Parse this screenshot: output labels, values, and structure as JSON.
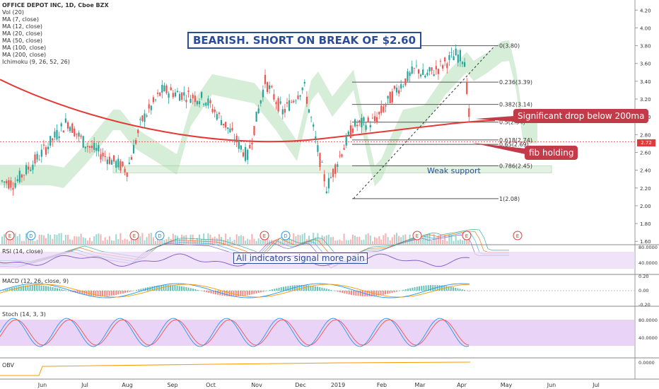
{
  "header": {
    "symbol_line": "OFFICE DEPOT INC, 1D, Cboe BZX",
    "indicators": [
      "Vol (20)",
      "MA (7, close)",
      "MA (12, close)",
      "MA (20, close)",
      "MA (50, close)",
      "MA (100, close)",
      "MA (200, close)",
      "Ichimoku (9, 26, 52, 26)"
    ]
  },
  "annotations": {
    "headline": "BEARISH. SHORT ON BREAK OF $2.60",
    "drop_callout": "Significant drop below 200ma",
    "fib_callout": "fib holding",
    "support_label": "Weak support",
    "indicators_label": "All indicators signal more pain"
  },
  "colors": {
    "up": "#26a69a",
    "down": "#ef5350",
    "ma200": "#e53935",
    "ma100": "#c0392b",
    "cloud_green": "#a5d6a7",
    "cloud_red": "#f8bbd0",
    "rsi_band": "#e9d5f7",
    "stoch_band": "#e2c6f5",
    "callout": "#c23b48",
    "annotation_blue": "#2a4d9a"
  },
  "panes": {
    "rsi_label": "RSI (14, close)",
    "macd_label": "MACD (12, 26, close, 9)",
    "stoch_label": "Stoch (14, 3, 3)",
    "obv_label": "OBV",
    "last_price_tag": "2.72"
  },
  "chart_data": {
    "type": "candlestick",
    "x_ticks": [
      "Jun",
      "Jul",
      "Aug",
      "Sep",
      "Oct",
      "Nov",
      "Dec",
      "2019",
      "Feb",
      "Mar",
      "Apr",
      "May",
      "Jun",
      "Jul"
    ],
    "price_axis": {
      "ticks": [
        "4.20",
        "4.00",
        "3.80",
        "3.60",
        "3.40",
        "3.20",
        "3.00",
        "2.80",
        "2.60",
        "2.40",
        "2.20",
        "2.00",
        "1.80",
        "1.60"
      ],
      "range": [
        1.57,
        4.25
      ]
    },
    "fib_levels": [
      {
        "ratio": 0,
        "price": 3.8,
        "label": "0(3.80)"
      },
      {
        "ratio": 0.236,
        "price": 3.39,
        "label": "0.236(3.39)"
      },
      {
        "ratio": 0.382,
        "price": 3.14,
        "label": "0.382(3.14)"
      },
      {
        "ratio": 0.5,
        "price": 2.94,
        "label": "0.5(2.94)"
      },
      {
        "ratio": 0.618,
        "price": 2.74,
        "label": "0.618(2.74)"
      },
      {
        "ratio": 0.65,
        "price": 2.69,
        "label": "0.65(2.69)"
      },
      {
        "ratio": 0.786,
        "price": 2.45,
        "label": "0.786(2.45)"
      },
      {
        "ratio": 1,
        "price": 2.08,
        "label": "1(2.08)"
      }
    ],
    "support_zone": [
      2.37,
      2.45
    ],
    "last_price": 2.72,
    "rsi_axis": [
      "80.0000",
      "40.0000"
    ],
    "macd_axis": [
      "0.20",
      "0.00",
      "-0.20"
    ],
    "stoch_axis": [
      "80.0000",
      "40.0000"
    ],
    "obv_axis": [
      "0.0000"
    ],
    "event_markers": [
      "E",
      "D",
      "E",
      "D",
      "E",
      "D",
      "E",
      "E",
      "E"
    ]
  }
}
